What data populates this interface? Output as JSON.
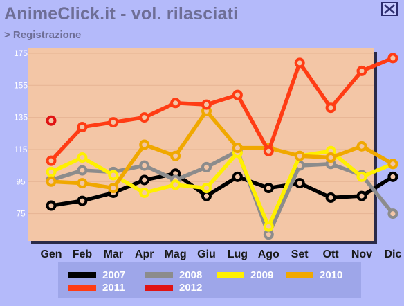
{
  "header": {
    "title": "AnimeClick.it - vol. rilasciati",
    "breadcrumb": "> Registrazione",
    "close_icon": "close-x-icon"
  },
  "colors": {
    "background": "#b4bafa",
    "plot_background": "#f3c6a6",
    "text_muted": "#6e6e96",
    "legend_background": "#9ea6e9"
  },
  "chart_data": {
    "type": "line",
    "title": "AnimeClick.it - vol. rilasciati",
    "xlabel": "",
    "ylabel": "",
    "categories": [
      "Gen",
      "Feb",
      "Mar",
      "Apr",
      "Mag",
      "Giu",
      "Lug",
      "Ago",
      "Set",
      "Ott",
      "Nov",
      "Dic"
    ],
    "yticks": [
      75,
      95,
      115,
      135,
      155,
      175
    ],
    "ylim": [
      58,
      178
    ],
    "grid": "horizontal",
    "legend_position": "bottom",
    "series": [
      {
        "name": "2007",
        "color": "#000000",
        "values": [
          80,
          83,
          88,
          96,
          100,
          86,
          98,
          91,
          94,
          85,
          86,
          98
        ]
      },
      {
        "name": "2008",
        "color": "#8c8c8c",
        "values": [
          96,
          102,
          101,
          105,
          96,
          104,
          114,
          62,
          105,
          106,
          99,
          75
        ]
      },
      {
        "name": "2009",
        "color": "#fff000",
        "values": [
          101,
          110,
          99,
          88,
          93,
          91,
          113,
          67,
          111,
          114,
          98,
          106
        ]
      },
      {
        "name": "2010",
        "color": "#f0a800",
        "values": [
          95,
          94,
          91,
          118,
          111,
          139,
          116,
          116,
          111,
          110,
          117,
          106
        ]
      },
      {
        "name": "2011",
        "color": "#ff3c14",
        "values": [
          108,
          129,
          132,
          135,
          144,
          143,
          149,
          114,
          169,
          141,
          164,
          172
        ]
      },
      {
        "name": "2012",
        "color": "#e01414",
        "values": [
          133,
          null,
          null,
          null,
          null,
          null,
          null,
          null,
          null,
          null,
          null,
          null
        ]
      }
    ]
  }
}
